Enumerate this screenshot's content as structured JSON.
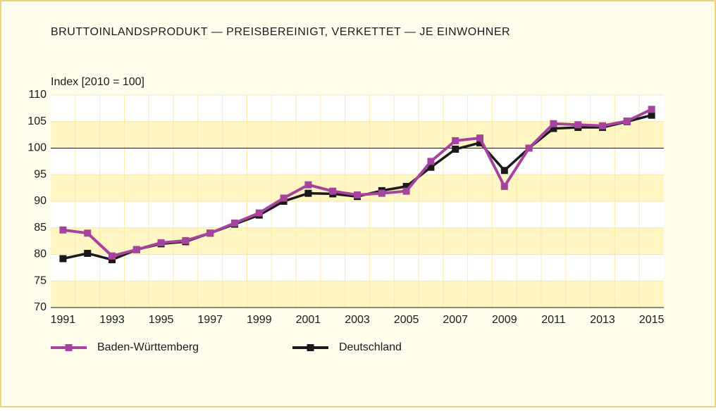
{
  "chart_data": {
    "type": "line",
    "title": "BRUTTOINLANDSPRODUKT — PREISBEREINIGT, VERKETTET — JE EINWOHNER",
    "y_label": "Index [2010 = 100]",
    "categories": [
      "1991",
      null,
      "1993",
      null,
      "1995",
      null,
      "1997",
      null,
      "1999",
      null,
      "2001",
      null,
      "2003",
      null,
      "2005",
      null,
      "2007",
      null,
      "2009",
      null,
      "2011",
      null,
      "2013",
      null,
      "2015"
    ],
    "series": [
      {
        "name": "Baden-Württemberg",
        "color": "#a5449c",
        "values": [
          84.6,
          84.0,
          79.7,
          80.9,
          82.2,
          82.6,
          84.0,
          85.9,
          87.8,
          90.6,
          93.1,
          91.9,
          91.2,
          91.5,
          91.9,
          97.5,
          101.4,
          101.9,
          92.8,
          100,
          104.6,
          104.4,
          104.2,
          105.1,
          107.3
        ]
      },
      {
        "name": "Deutschland",
        "color": "#1a1a1a",
        "values": [
          79.2,
          80.2,
          79.0,
          80.9,
          82.0,
          82.4,
          84.0,
          85.7,
          87.4,
          90.0,
          91.5,
          91.4,
          90.9,
          92.0,
          92.8,
          96.4,
          99.8,
          101.0,
          95.8,
          100,
          103.7,
          103.9,
          103.9,
          105.0,
          106.2
        ]
      }
    ],
    "ylim": [
      70,
      110
    ],
    "yticks": [
      70,
      75,
      80,
      85,
      90,
      95,
      100,
      105,
      110
    ],
    "reference_line": 100,
    "grid": true,
    "legend": "bottom"
  }
}
